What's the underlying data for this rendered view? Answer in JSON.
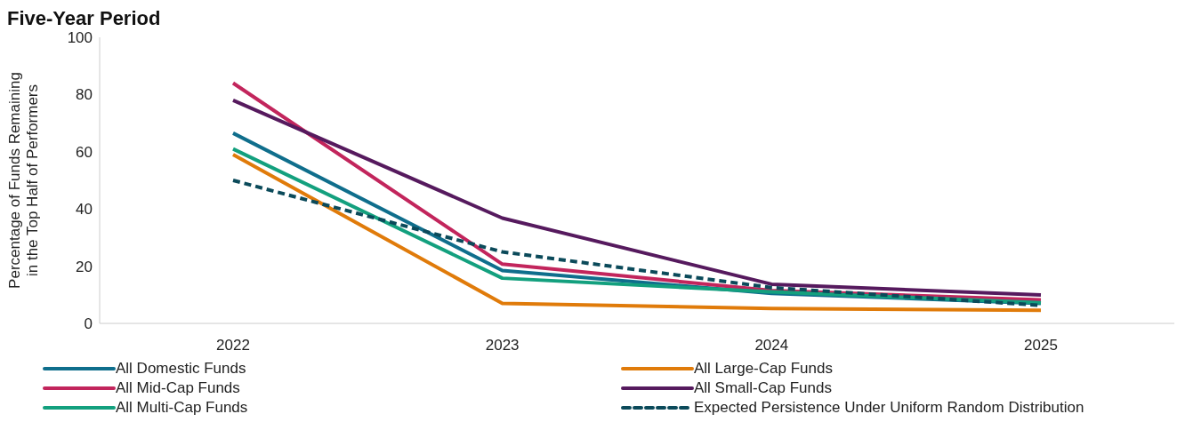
{
  "chart_data": {
    "type": "line",
    "title": "Five-Year Period",
    "ylabel": "Percentage of Funds Remaining in the Top Half of Performers",
    "categories": [
      "2022",
      "2023",
      "2024",
      "2025"
    ],
    "series": [
      {
        "name": "All Domestic Funds",
        "color": "#0f6e8c",
        "values": [
          66.5,
          18.5,
          10.5,
          7
        ]
      },
      {
        "name": "All Large-Cap Funds",
        "color": "#e07b0a",
        "values": [
          59,
          7,
          5.2,
          4.6
        ]
      },
      {
        "name": "All Mid-Cap Funds",
        "color": "#c2255c",
        "values": [
          84,
          20.7,
          11.5,
          8.2
        ]
      },
      {
        "name": "All Small-Cap Funds",
        "color": "#561a5e",
        "values": [
          78,
          36.8,
          13.7,
          9.9
        ]
      },
      {
        "name": "All Multi-Cap Funds",
        "color": "#13a07e",
        "values": [
          61,
          15.8,
          11,
          7.2
        ]
      },
      {
        "name": "Expected Persistence Under Uniform Random Distribution",
        "color": "#0b4a5a",
        "line_style": "dashed",
        "values": [
          50,
          25,
          12.5,
          6.3
        ]
      }
    ],
    "ylim": [
      0,
      100
    ],
    "yticks": [
      0,
      20,
      40,
      60,
      80,
      100
    ],
    "grid": false,
    "legend": "bottom",
    "marker": "none"
  }
}
